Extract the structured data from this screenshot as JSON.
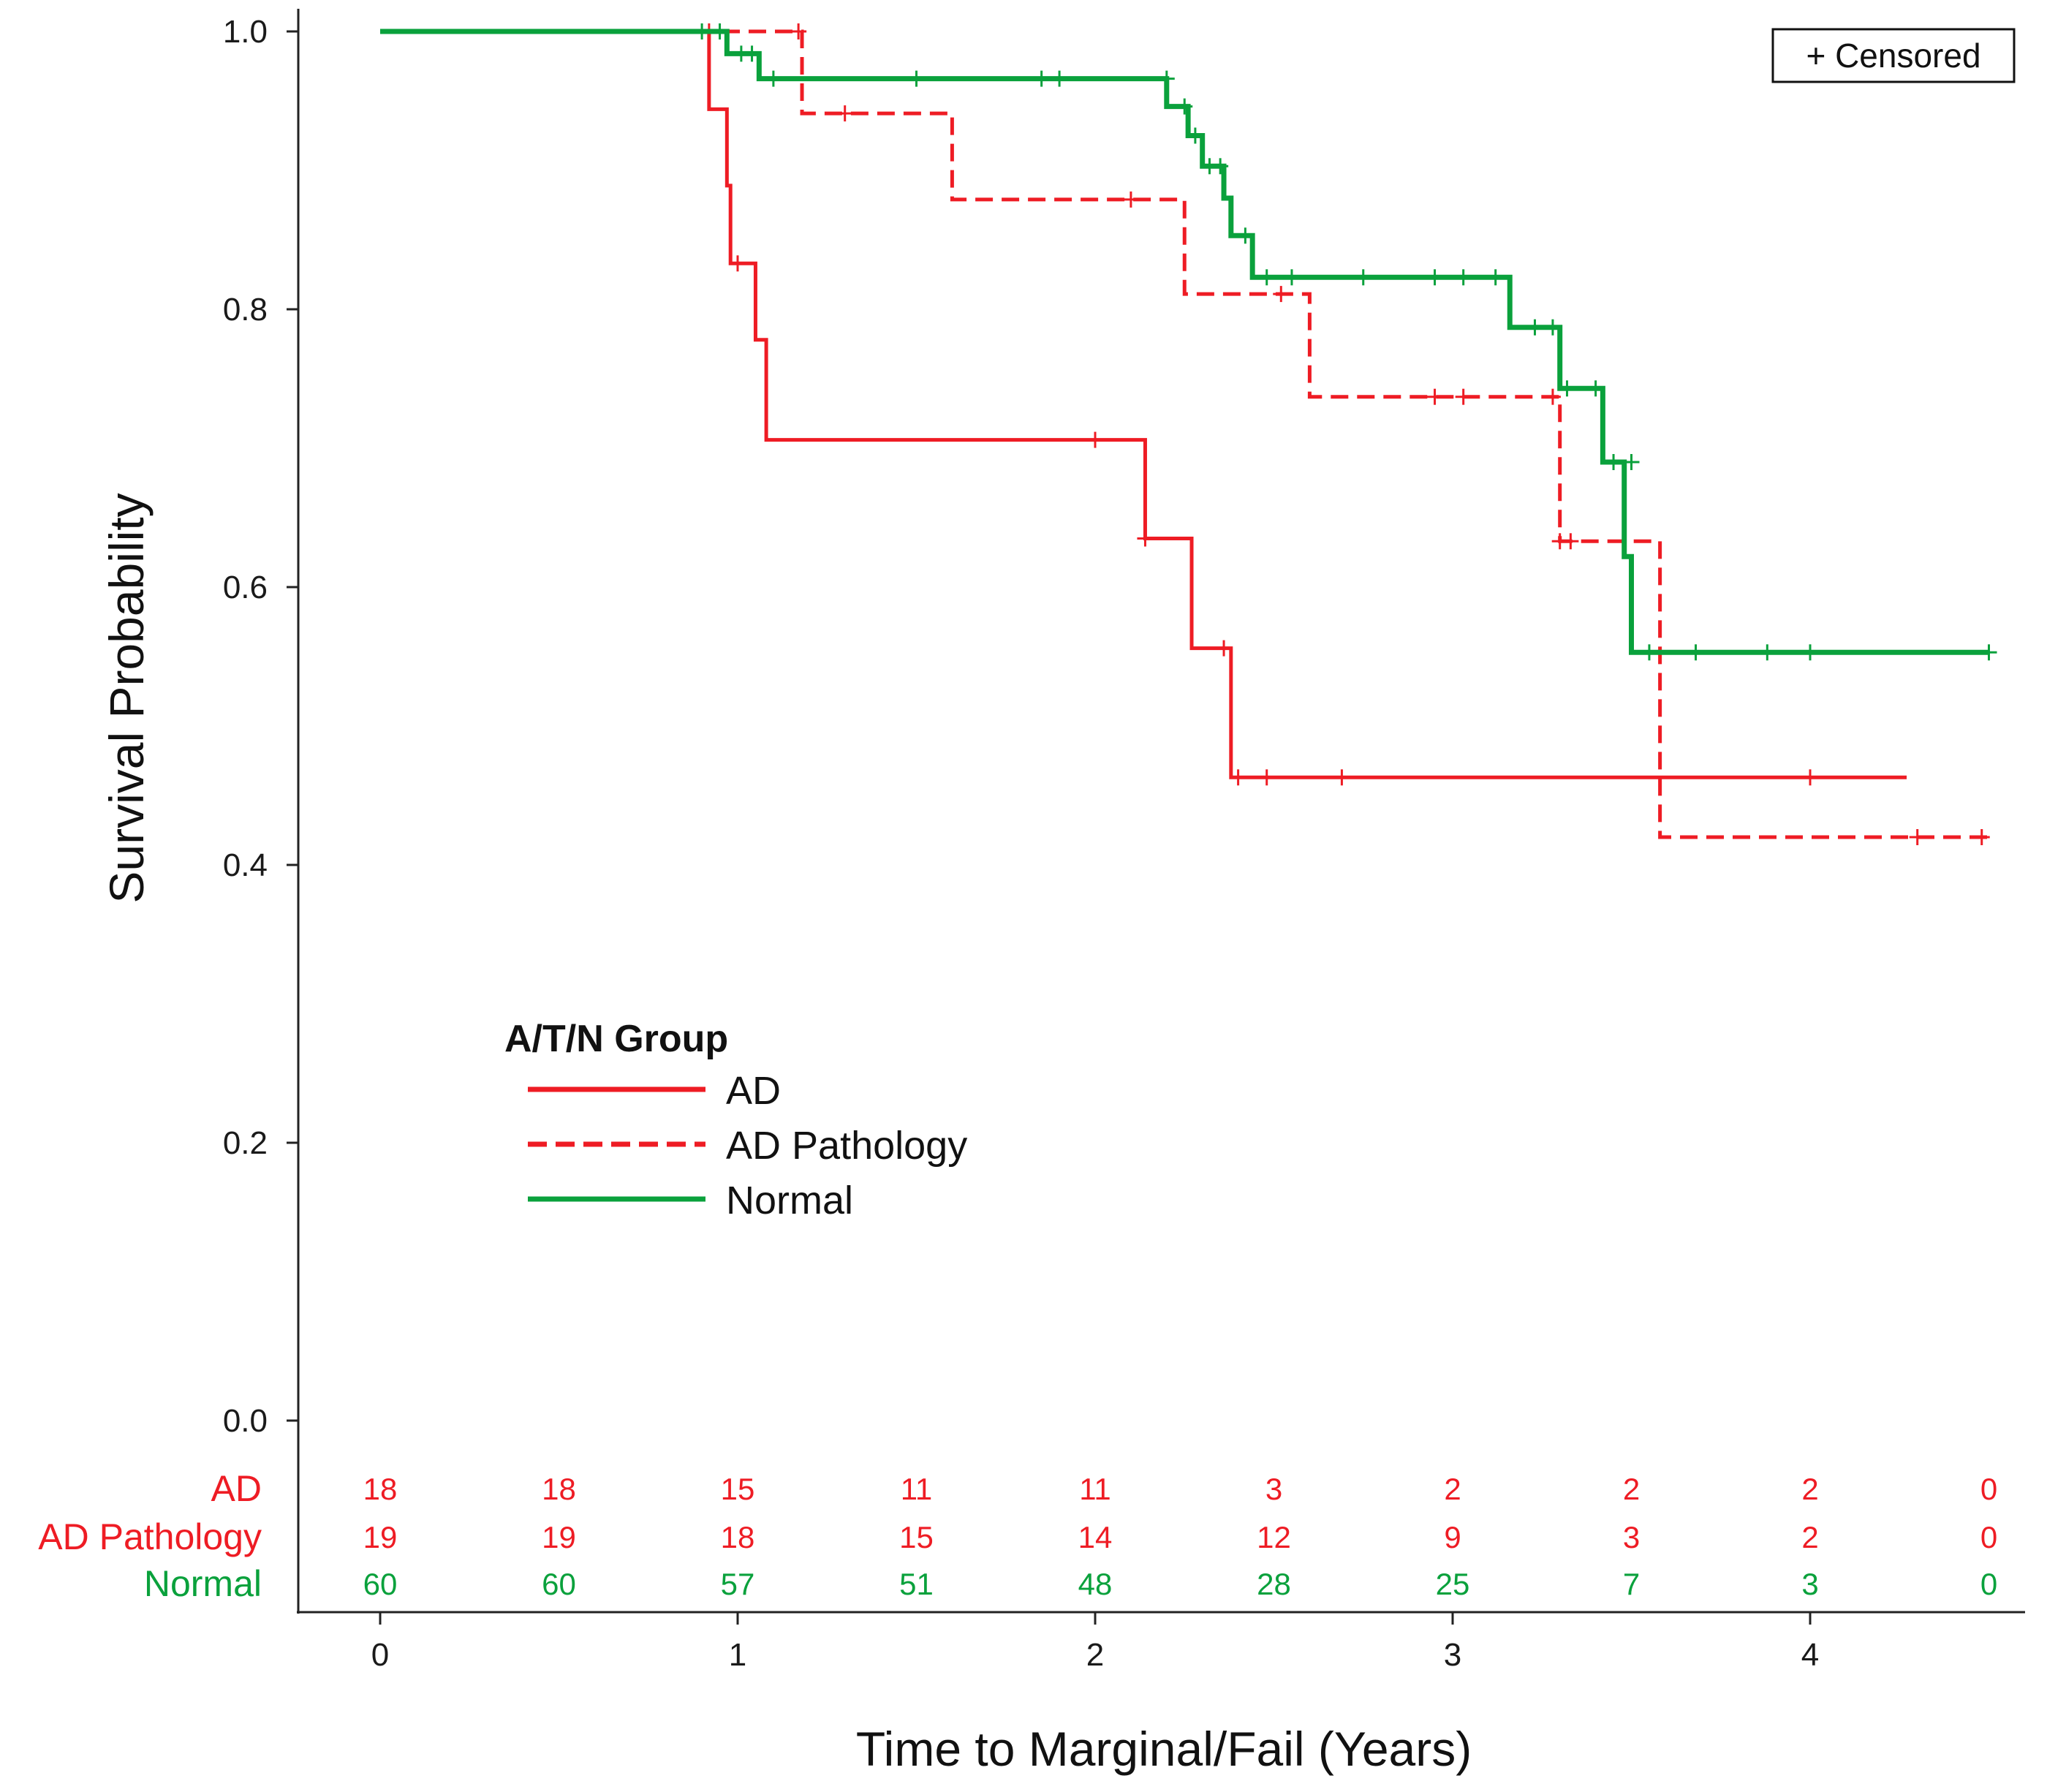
{
  "chart_data": {
    "type": "line",
    "subtype": "kaplan-meier",
    "xlabel": "Time to Marginal/Fail (Years)",
    "ylabel": "Survival Probability",
    "xlim": [
      -0.23,
      4.65
    ],
    "ylim": [
      0,
      1
    ],
    "x_ticks": [
      0,
      1,
      2,
      3,
      4
    ],
    "x_tick_labels": [
      "0",
      "1",
      "2",
      "3",
      "4"
    ],
    "y_ticks": [
      0,
      0.2,
      0.4,
      0.6,
      0.8,
      1.0
    ],
    "y_tick_labels": [
      "0.0",
      "0.2",
      "0.4",
      "0.6",
      "0.8",
      "1.0"
    ],
    "censored_label": "+ Censored",
    "legend": {
      "title": "A/T/N Group",
      "placement": "center-left",
      "entries": [
        {
          "label": "AD",
          "color": "#ee1c24",
          "dash": "solid"
        },
        {
          "label": "AD Pathology",
          "color": "#ee1c24",
          "dash": "dashed"
        },
        {
          "label": "Normal",
          "color": "#0aa13c",
          "dash": "solid"
        }
      ]
    },
    "series": [
      {
        "name": "AD",
        "color": "#ee1c24",
        "dash": "solid",
        "width": 5,
        "steps": [
          [
            0,
            1.0
          ],
          [
            0.92,
            0.944
          ],
          [
            0.97,
            0.889
          ],
          [
            0.98,
            0.833
          ],
          [
            1.05,
            0.778
          ],
          [
            1.08,
            0.706
          ],
          [
            2.14,
            0.635
          ],
          [
            2.27,
            0.556
          ],
          [
            2.38,
            0.463
          ],
          [
            4.27,
            0.463
          ]
        ],
        "censored": [
          [
            0.92,
            1.0
          ],
          [
            1.0,
            0.833
          ],
          [
            2.0,
            0.706
          ],
          [
            2.14,
            0.635
          ],
          [
            2.36,
            0.556
          ],
          [
            2.4,
            0.463
          ],
          [
            2.48,
            0.463
          ],
          [
            2.69,
            0.463
          ],
          [
            4.0,
            0.463
          ]
        ]
      },
      {
        "name": "AD Pathology",
        "color": "#ee1c24",
        "dash": "dashed",
        "width": 5,
        "steps": [
          [
            0,
            1.0
          ],
          [
            1.18,
            0.941
          ],
          [
            1.6,
            0.879
          ],
          [
            2.25,
            0.811
          ],
          [
            2.6,
            0.737
          ],
          [
            3.3,
            0.633
          ],
          [
            3.58,
            0.42
          ],
          [
            4.5,
            0.42
          ]
        ],
        "censored": [
          [
            1.17,
            1.0
          ],
          [
            1.3,
            0.941
          ],
          [
            2.1,
            0.879
          ],
          [
            2.52,
            0.811
          ],
          [
            2.95,
            0.737
          ],
          [
            3.03,
            0.737
          ],
          [
            3.28,
            0.737
          ],
          [
            3.3,
            0.633
          ],
          [
            3.33,
            0.633
          ],
          [
            4.3,
            0.42
          ],
          [
            4.48,
            0.42
          ]
        ]
      },
      {
        "name": "Normal",
        "color": "#0aa13c",
        "dash": "solid",
        "width": 7,
        "steps": [
          [
            0,
            1.0
          ],
          [
            0.97,
            0.984
          ],
          [
            1.06,
            0.966
          ],
          [
            2.2,
            0.946
          ],
          [
            2.26,
            0.925
          ],
          [
            2.3,
            0.903
          ],
          [
            2.36,
            0.88
          ],
          [
            2.38,
            0.853
          ],
          [
            2.44,
            0.823
          ],
          [
            3.16,
            0.787
          ],
          [
            3.3,
            0.743
          ],
          [
            3.42,
            0.69
          ],
          [
            3.48,
            0.622
          ],
          [
            3.5,
            0.553
          ],
          [
            4.5,
            0.553
          ]
        ],
        "censored": [
          [
            0.9,
            1.0
          ],
          [
            0.95,
            1.0
          ],
          [
            1.01,
            0.984
          ],
          [
            1.04,
            0.984
          ],
          [
            1.1,
            0.966
          ],
          [
            1.5,
            0.966
          ],
          [
            1.85,
            0.966
          ],
          [
            1.9,
            0.966
          ],
          [
            2.2,
            0.966
          ],
          [
            2.25,
            0.946
          ],
          [
            2.28,
            0.925
          ],
          [
            2.32,
            0.903
          ],
          [
            2.35,
            0.903
          ],
          [
            2.42,
            0.853
          ],
          [
            2.48,
            0.823
          ],
          [
            2.55,
            0.823
          ],
          [
            2.75,
            0.823
          ],
          [
            2.95,
            0.823
          ],
          [
            3.03,
            0.823
          ],
          [
            3.12,
            0.823
          ],
          [
            3.23,
            0.787
          ],
          [
            3.28,
            0.787
          ],
          [
            3.32,
            0.743
          ],
          [
            3.4,
            0.743
          ],
          [
            3.45,
            0.69
          ],
          [
            3.5,
            0.69
          ],
          [
            3.55,
            0.553
          ],
          [
            3.68,
            0.553
          ],
          [
            3.88,
            0.553
          ],
          [
            4.0,
            0.553
          ],
          [
            4.5,
            0.553
          ]
        ]
      }
    ],
    "risk_table": {
      "times": [
        0,
        0.5,
        1,
        1.5,
        2,
        2.5,
        3,
        3.5,
        4,
        4.5
      ],
      "rows": [
        {
          "name": "AD",
          "color": "#ee1c24",
          "values": [
            "18",
            "18",
            "15",
            "11",
            "11",
            "3",
            "2",
            "2",
            "2",
            "0"
          ]
        },
        {
          "name": "AD Pathology",
          "color": "#ee1c24",
          "values": [
            "19",
            "19",
            "18",
            "15",
            "14",
            "12",
            "9",
            "3",
            "2",
            "0"
          ]
        },
        {
          "name": "Normal",
          "color": "#0aa13c",
          "values": [
            "60",
            "60",
            "57",
            "51",
            "48",
            "28",
            "25",
            "7",
            "3",
            "0"
          ]
        }
      ]
    }
  }
}
